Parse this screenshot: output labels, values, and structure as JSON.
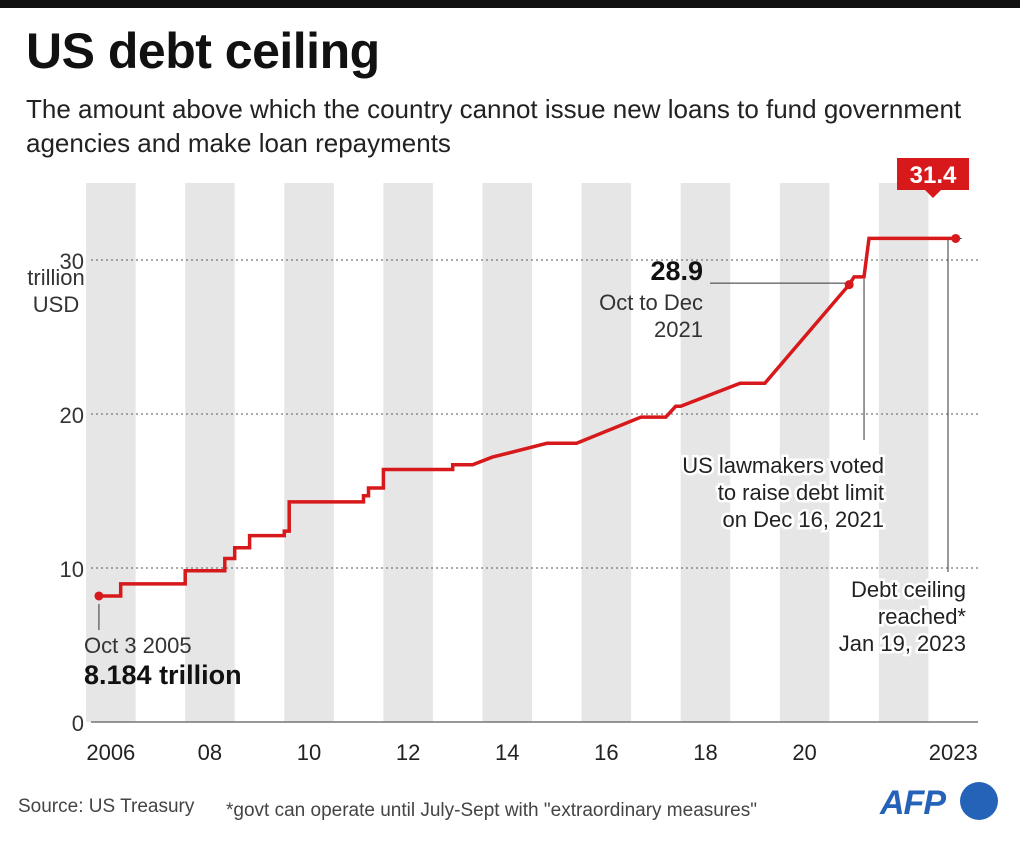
{
  "title": "US debt ceiling",
  "subtitle": "The amount above which the country cannot issue new loans to fund government agencies and make loan repayments",
  "source": "Source: US Treasury",
  "footnote": "*govt can operate until July-Sept with \"extraordinary measures\"",
  "logo_text": "AFP",
  "colors": {
    "line": "#d7191c",
    "band": "#e6e6e6",
    "logo": "#2563b8"
  },
  "chart_data": {
    "type": "line",
    "ylabel": [
      "trillion",
      "USD"
    ],
    "ylim": [
      0,
      35
    ],
    "xlim": [
      2005.6,
      2023.5
    ],
    "y_ticks": [
      0,
      10,
      20,
      30
    ],
    "x_ticks": [
      {
        "value": 2006,
        "label": "2006"
      },
      {
        "value": 2008,
        "label": "08"
      },
      {
        "value": 2010,
        "label": "10"
      },
      {
        "value": 2012,
        "label": "12"
      },
      {
        "value": 2014,
        "label": "14"
      },
      {
        "value": 2016,
        "label": "16"
      },
      {
        "value": 2018,
        "label": "18"
      },
      {
        "value": 2020,
        "label": "20"
      },
      {
        "value": 2023,
        "label": "2023"
      }
    ],
    "grid": true,
    "series": [
      {
        "points": [
          [
            2005.76,
            8.184
          ],
          [
            2006.2,
            8.184
          ],
          [
            2006.2,
            8.965
          ],
          [
            2007.5,
            8.965
          ],
          [
            2007.5,
            9.815
          ],
          [
            2008.3,
            9.815
          ],
          [
            2008.3,
            10.615
          ],
          [
            2008.5,
            10.615
          ],
          [
            2008.5,
            11.315
          ],
          [
            2008.8,
            11.315
          ],
          [
            2008.8,
            12.104
          ],
          [
            2009.5,
            12.104
          ],
          [
            2009.5,
            12.394
          ],
          [
            2009.6,
            12.394
          ],
          [
            2009.6,
            14.294
          ],
          [
            2011.1,
            14.294
          ],
          [
            2011.1,
            14.694
          ],
          [
            2011.2,
            14.694
          ],
          [
            2011.2,
            15.194
          ],
          [
            2011.5,
            15.194
          ],
          [
            2011.5,
            16.394
          ],
          [
            2012.9,
            16.394
          ],
          [
            2012.9,
            16.7
          ],
          [
            2013.3,
            16.7
          ],
          [
            2013.7,
            17.2
          ],
          [
            2014.8,
            18.1
          ],
          [
            2015.4,
            18.1
          ],
          [
            2016.7,
            19.8
          ],
          [
            2017.2,
            19.8
          ],
          [
            2017.4,
            20.5
          ],
          [
            2017.5,
            20.5
          ],
          [
            2018.7,
            22.0
          ],
          [
            2019.2,
            22.0
          ],
          [
            2020.9,
            28.4
          ],
          [
            2021.0,
            28.9
          ],
          [
            2021.2,
            28.9
          ],
          [
            2021.3,
            31.4
          ],
          [
            2023.05,
            31.4
          ]
        ]
      }
    ],
    "annotations": {
      "start_date": "Oct 3 2005",
      "start_value": "8.184 trillion",
      "oct_value": "28.9",
      "oct_label": [
        "Oct to Dec",
        "2021"
      ],
      "dec_label": [
        "US lawmakers voted",
        "to raise debt limit",
        "on Dec 16, 2021"
      ],
      "end_label": [
        "Debt ceiling",
        "reached*",
        "Jan 19, 2023"
      ],
      "end_value": "31.4"
    }
  }
}
